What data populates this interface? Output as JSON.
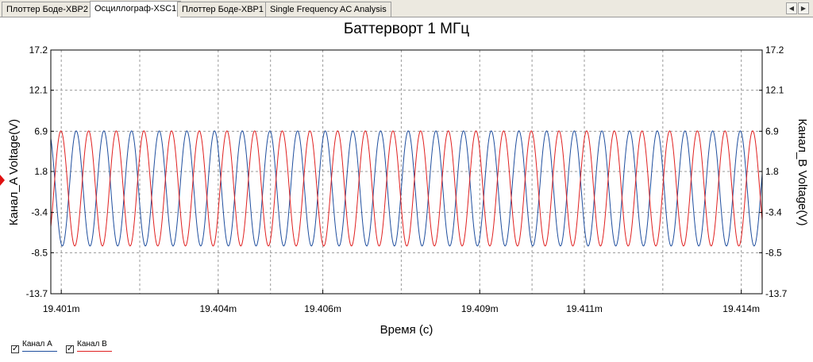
{
  "tabs": [
    {
      "label": "Плоттер Боде-XBP2",
      "active": false
    },
    {
      "label": "Осциллограф-XSC1",
      "active": true
    },
    {
      "label": "Плоттер Боде-XBP1",
      "active": false
    },
    {
      "label": "Single Frequency AC Analysis",
      "active": false
    }
  ],
  "nav": {
    "left": "◀",
    "right": "▶"
  },
  "legend": {
    "channel_a": {
      "label": "Канал A",
      "checked": true,
      "color": "#1f4e9e"
    },
    "channel_b": {
      "label": "Канал B",
      "checked": true,
      "color": "#e02020"
    }
  },
  "chart_data": {
    "type": "line",
    "title": "Баттерворт 1 МГц",
    "xlabel": "Время (с)",
    "ylabel_left": "Канал_A Voltage(V)",
    "ylabel_right": "Канал_B Voltage(V)",
    "x_unit_suffix": "m",
    "xlim": [
      19.4008,
      19.4144
    ],
    "ylim": [
      -13.7,
      17.2
    ],
    "x_ticks": [
      19.401,
      19.404,
      19.406,
      19.409,
      19.411,
      19.414
    ],
    "x_tick_labels": [
      "19.401m",
      "19.404m",
      "19.406m",
      "19.409m",
      "19.411m",
      "19.414m"
    ],
    "y_ticks": [
      17.2,
      12.1,
      6.9,
      1.8,
      -3.4,
      -8.5,
      -13.7
    ],
    "y_tick_labels": [
      "17.2",
      "12.1",
      "6.9",
      "1.8",
      "-3.4",
      "-8.5",
      "-13.7"
    ],
    "grid": true,
    "legend_position": "bottom-left",
    "series": [
      {
        "name": "Канал A",
        "color": "#1f4e9e",
        "waveform": "sine",
        "amplitude": 7.3,
        "offset": -0.35,
        "period": 0.000529,
        "phase": 0.0,
        "start_value": 6.0
      },
      {
        "name": "Канал B",
        "color": "#e02020",
        "waveform": "sine",
        "amplitude": 7.3,
        "offset": -0.35,
        "period": 0.000529,
        "phase": 3.14159,
        "start_value": -5.2
      }
    ]
  }
}
